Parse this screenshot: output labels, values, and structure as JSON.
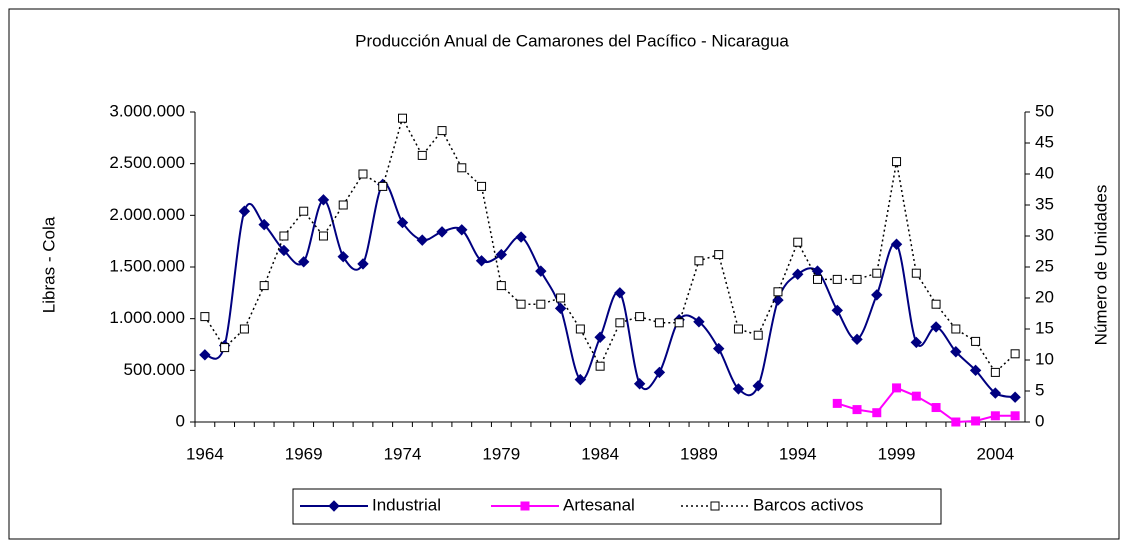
{
  "chart_data": {
    "type": "line",
    "title": "Producción Anual de Camarones del Pacífico - Nicaragua",
    "ylabel": "Libras - Cola",
    "y2label": "Número de Unidades",
    "categories": [
      "1964",
      null,
      null,
      null,
      null,
      "1969",
      null,
      null,
      null,
      null,
      "1974",
      null,
      null,
      null,
      null,
      "1979",
      null,
      null,
      null,
      null,
      "1984",
      null,
      null,
      null,
      null,
      "1989",
      null,
      null,
      null,
      null,
      "1994",
      null,
      null,
      null,
      null,
      "1999",
      null,
      null,
      null,
      null,
      "2004",
      null
    ],
    "ylim": [
      0,
      3000000
    ],
    "yticks": [
      0,
      {
        "value": 500000,
        "label": "500.000"
      },
      {
        "value": 1000000,
        "label": "1.000.000"
      },
      {
        "value": 1500000,
        "label": "1.500.000"
      },
      {
        "value": 2000000,
        "label": "2.000.000"
      },
      {
        "value": 2500000,
        "label": "2.500.000"
      },
      {
        "value": 3000000,
        "label": "3.000.000"
      }
    ],
    "y2lim": [
      0,
      50
    ],
    "y2ticks": [
      0,
      5,
      10,
      15,
      20,
      25,
      30,
      35,
      40,
      45,
      50
    ],
    "series": [
      {
        "name": "Industrial",
        "color": "#000080",
        "marker": "diamond",
        "smooth": true,
        "values": [
          650000,
          740000,
          2040000,
          1910000,
          1660000,
          1550000,
          2150000,
          1600000,
          1530000,
          2300000,
          1930000,
          1760000,
          1840000,
          1860000,
          1560000,
          1620000,
          1790000,
          1460000,
          1100000,
          410000,
          820000,
          1250000,
          370000,
          480000,
          990000,
          970000,
          710000,
          320000,
          350000,
          1180000,
          1430000,
          1460000,
          1080000,
          800000,
          1230000,
          1720000,
          770000,
          920000,
          680000,
          500000,
          280000,
          240000
        ]
      },
      {
        "name": "Artesanal",
        "color": "#ff00ff",
        "marker": "square",
        "values": [
          null,
          null,
          null,
          null,
          null,
          null,
          null,
          null,
          null,
          null,
          null,
          null,
          null,
          null,
          null,
          null,
          null,
          null,
          null,
          null,
          null,
          null,
          null,
          null,
          null,
          null,
          null,
          null,
          null,
          null,
          null,
          null,
          180000,
          120000,
          90000,
          330000,
          250000,
          140000,
          0,
          10000,
          60000,
          60000
        ]
      },
      {
        "name": "Barcos activos",
        "color": "#000000",
        "marker": "hollow-square",
        "dashed": true,
        "axis": "y2",
        "values": [
          17,
          12,
          15,
          22,
          30,
          34,
          30,
          35,
          40,
          38,
          49,
          43,
          47,
          41,
          38,
          22,
          19,
          19,
          20,
          15,
          9,
          16,
          17,
          16,
          16,
          26,
          27,
          15,
          14,
          21,
          29,
          23,
          23,
          23,
          24,
          42,
          24,
          19,
          15,
          13,
          8,
          11
        ]
      }
    ]
  }
}
